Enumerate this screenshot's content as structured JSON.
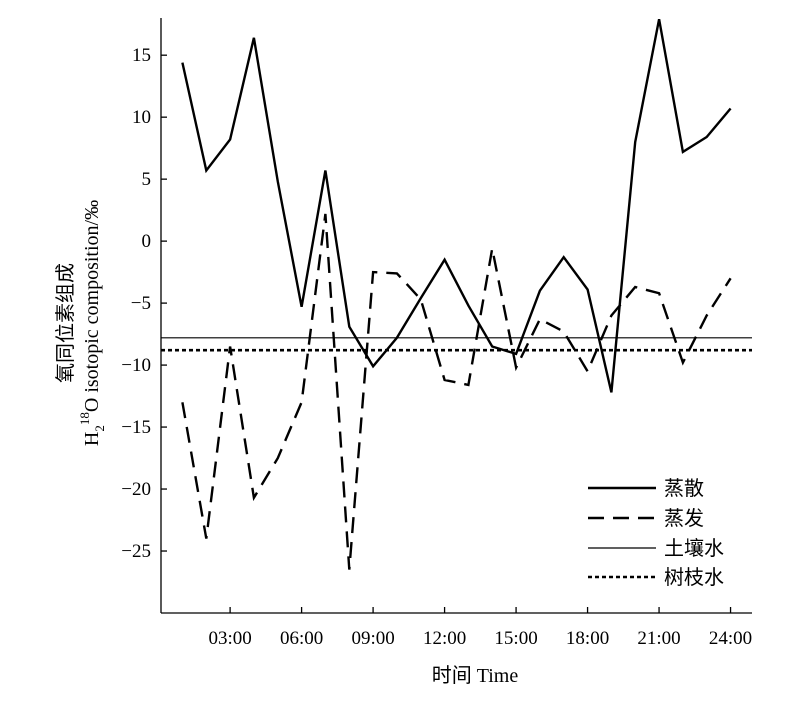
{
  "chart_data": {
    "type": "line",
    "xlabel": "时间 Time",
    "ylabel_line1": "氧同位素组成",
    "ylabel_line2_prefix": "H",
    "ylabel_line2_sub": "2",
    "ylabel_line2_sup": "18",
    "ylabel_line2_rest": "O isotopic composition/‰",
    "xlim": [
      0.1,
      24.9
    ],
    "ylim": [
      -30,
      18
    ],
    "x_ticks": [
      3,
      6,
      9,
      12,
      15,
      18,
      21,
      24
    ],
    "x_tick_labels": [
      "03:00",
      "06:00",
      "09:00",
      "12:00",
      "15:00",
      "18:00",
      "21:00",
      "24:00"
    ],
    "y_ticks": [
      15,
      10,
      5,
      0,
      -5,
      -10,
      -15,
      -20,
      -25
    ],
    "y_tick_labels": [
      "15",
      "10",
      "5",
      "0",
      "−5",
      "−10",
      "−15",
      "−20",
      "−25"
    ],
    "grid": false,
    "legend_position": "lower-right",
    "series": [
      {
        "name": "蒸散",
        "style": "solid-thick",
        "color": "#000000",
        "x": [
          1,
          2,
          3,
          4,
          5,
          6,
          7,
          8,
          9,
          10,
          11,
          12,
          13,
          14,
          15,
          16,
          17,
          18,
          19,
          20,
          21,
          22,
          23,
          24
        ],
        "y": [
          14.4,
          5.7,
          8.2,
          16.4,
          4.8,
          -5.3,
          5.7,
          -6.9,
          -10.1,
          -7.8,
          -4.6,
          -1.5,
          -5.2,
          -8.5,
          -9.1,
          -4.0,
          -1.3,
          -3.9,
          -12.2,
          8.0,
          17.9,
          7.2,
          8.4,
          10.7
        ]
      },
      {
        "name": "蒸发",
        "style": "dashed",
        "color": "#000000",
        "x": [
          1,
          2,
          3,
          4,
          5,
          6,
          7,
          8,
          9,
          10,
          11,
          12,
          13,
          14,
          15,
          16,
          17,
          18,
          19,
          20,
          21,
          22,
          23,
          24
        ],
        "y": [
          -13.0,
          -24.0,
          -8.5,
          -20.7,
          -17.5,
          -13.0,
          2.2,
          -26.5,
          -2.5,
          -2.6,
          -4.7,
          -11.2,
          -11.6,
          -0.6,
          -10.2,
          -6.3,
          -7.3,
          -10.5,
          -6.0,
          -3.7,
          -4.2,
          -9.8,
          -6.0,
          -3.0
        ]
      },
      {
        "name": "土壤水",
        "style": "solid-thin",
        "color": "#000000",
        "x": [
          0.1,
          24.9
        ],
        "y": [
          -7.8,
          -7.8
        ]
      },
      {
        "name": "树枝水",
        "style": "dotted",
        "color": "#000000",
        "x": [
          0.1,
          24.9
        ],
        "y": [
          -8.8,
          -8.8
        ]
      }
    ]
  }
}
